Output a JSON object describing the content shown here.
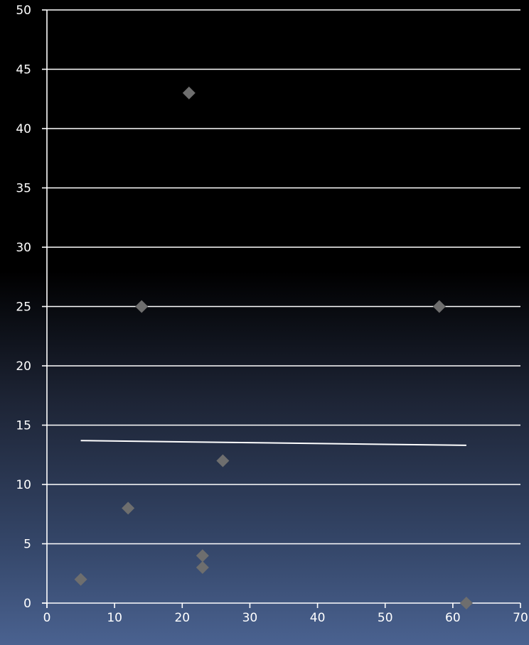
{
  "chart_data": {
    "type": "scatter",
    "title": "",
    "xlabel": "",
    "ylabel": "",
    "xlim": [
      0,
      70
    ],
    "ylim": [
      0,
      50
    ],
    "xticks": [
      0,
      10,
      20,
      30,
      40,
      50,
      60,
      70
    ],
    "yticks": [
      0,
      5,
      10,
      15,
      20,
      25,
      30,
      35,
      40,
      45,
      50
    ],
    "grid": "horizontal",
    "legend": "none",
    "marker": "diamond",
    "marker_color": "#6e6e6e",
    "trendline_color": "#ffffff",
    "series": [
      {
        "points": [
          {
            "x": 5,
            "y": 2
          },
          {
            "x": 12,
            "y": 8
          },
          {
            "x": 14,
            "y": 25
          },
          {
            "x": 21,
            "y": 43
          },
          {
            "x": 23,
            "y": 4
          },
          {
            "x": 23,
            "y": 3
          },
          {
            "x": 26,
            "y": 12
          },
          {
            "x": 58,
            "y": 25
          },
          {
            "x": 62,
            "y": 0
          }
        ]
      }
    ],
    "trendline": {
      "x": [
        5,
        62
      ],
      "y": [
        13.7,
        13.3
      ]
    }
  }
}
